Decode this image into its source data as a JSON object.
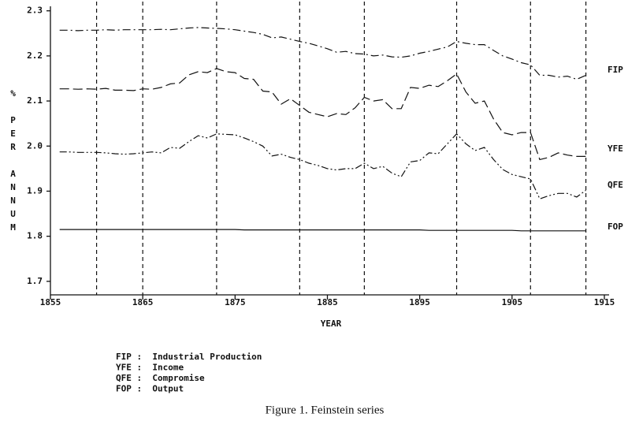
{
  "chart_data": {
    "type": "line",
    "title": "Figure 1. Feinstein series",
    "x_label": "YEAR",
    "y_label": "% PER ANNUM",
    "xlim": [
      1855,
      1915
    ],
    "xticks": [
      1855,
      1865,
      1875,
      1885,
      1895,
      1905,
      1915
    ],
    "ylim": [
      1.67,
      2.31
    ],
    "yticks": [
      1.7,
      1.8,
      1.9,
      {
        "value": 2,
        "label": "2.0"
      },
      2.1,
      2.2,
      2.3
    ],
    "vlines": [
      1860,
      1865,
      1873,
      1882,
      1889,
      1899,
      1907,
      1913
    ],
    "x": [
      1856,
      1857,
      1858,
      1859,
      1860,
      1861,
      1862,
      1863,
      1864,
      1865,
      1866,
      1867,
      1868,
      1869,
      1870,
      1871,
      1872,
      1873,
      1874,
      1875,
      1876,
      1877,
      1878,
      1879,
      1880,
      1881,
      1882,
      1883,
      1884,
      1885,
      1886,
      1887,
      1888,
      1889,
      1890,
      1891,
      1892,
      1893,
      1894,
      1895,
      1896,
      1897,
      1898,
      1899,
      1900,
      1901,
      1902,
      1903,
      1904,
      1905,
      1906,
      1907,
      1908,
      1909,
      1910,
      1911,
      1912,
      1913
    ],
    "series": [
      {
        "name": "FIP",
        "color": "#111111",
        "values": [
          2.257,
          2.257,
          2.256,
          2.257,
          2.257,
          2.258,
          2.257,
          2.258,
          2.258,
          2.258,
          2.258,
          2.259,
          2.258,
          2.26,
          2.262,
          2.263,
          2.262,
          2.261,
          2.26,
          2.258,
          2.255,
          2.252,
          2.248,
          2.24,
          2.242,
          2.237,
          2.232,
          2.228,
          2.222,
          2.216,
          2.208,
          2.21,
          2.205,
          2.204,
          2.2,
          2.202,
          2.198,
          2.197,
          2.2,
          2.206,
          2.21,
          2.215,
          2.22,
          2.232,
          2.228,
          2.225,
          2.225,
          2.212,
          2.2,
          2.193,
          2.185,
          2.18,
          2.157,
          2.157,
          2.153,
          2.155,
          2.148,
          2.157
        ]
      },
      {
        "name": "YFE",
        "color": "#111111",
        "values": [
          2.127,
          2.127,
          2.126,
          2.127,
          2.126,
          2.128,
          2.124,
          2.124,
          2.123,
          2.127,
          2.126,
          2.13,
          2.138,
          2.14,
          2.158,
          2.165,
          2.163,
          2.172,
          2.165,
          2.163,
          2.15,
          2.148,
          2.122,
          2.12,
          2.093,
          2.105,
          2.09,
          2.075,
          2.07,
          2.065,
          2.072,
          2.07,
          2.085,
          2.108,
          2.1,
          2.103,
          2.083,
          2.083,
          2.13,
          2.128,
          2.135,
          2.132,
          2.145,
          2.16,
          2.12,
          2.095,
          2.1,
          2.06,
          2.03,
          2.025,
          2.03,
          2.03,
          1.97,
          1.975,
          1.985,
          1.98,
          1.977,
          1.977
        ]
      },
      {
        "name": "QFE",
        "color": "#111111",
        "values": [
          1.987,
          1.987,
          1.986,
          1.986,
          1.986,
          1.985,
          1.983,
          1.982,
          1.983,
          1.985,
          1.987,
          1.985,
          1.997,
          1.995,
          2.01,
          2.023,
          2.018,
          2.027,
          2.026,
          2.025,
          2.018,
          2.01,
          2,
          1.978,
          1.982,
          1.975,
          1.97,
          1.962,
          1.957,
          1.95,
          1.947,
          1.95,
          1.95,
          1.962,
          1.95,
          1.955,
          1.94,
          1.932,
          1.965,
          1.968,
          1.985,
          1.983,
          2.005,
          2.027,
          2.005,
          1.99,
          1.997,
          1.97,
          1.948,
          1.937,
          1.932,
          1.927,
          1.883,
          1.89,
          1.895,
          1.895,
          1.887,
          1.902
        ]
      },
      {
        "name": "FOP",
        "color": "#111111",
        "values": [
          1.815,
          1.815,
          1.815,
          1.815,
          1.815,
          1.815,
          1.815,
          1.815,
          1.815,
          1.815,
          1.815,
          1.815,
          1.815,
          1.815,
          1.815,
          1.815,
          1.815,
          1.815,
          1.815,
          1.815,
          1.814,
          1.814,
          1.814,
          1.814,
          1.814,
          1.814,
          1.814,
          1.814,
          1.814,
          1.814,
          1.814,
          1.814,
          1.814,
          1.814,
          1.814,
          1.814,
          1.814,
          1.814,
          1.814,
          1.814,
          1.813,
          1.813,
          1.813,
          1.813,
          1.813,
          1.813,
          1.813,
          1.813,
          1.813,
          1.813,
          1.812,
          1.812,
          1.812,
          1.812,
          1.812,
          1.812,
          1.812,
          1.812
        ]
      }
    ],
    "legend": [
      "FIP :  Industrial Production",
      "YFE :  Income",
      "QFE :  Compromise",
      "FOP :  Output"
    ]
  }
}
